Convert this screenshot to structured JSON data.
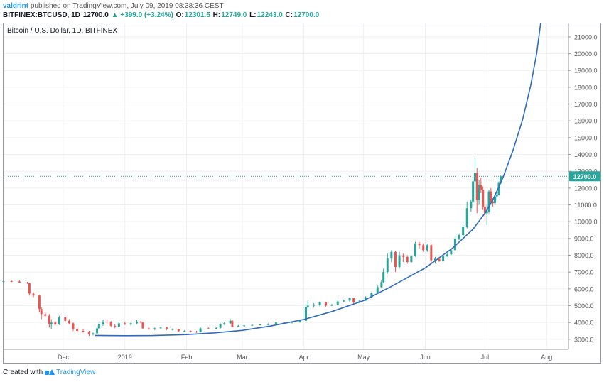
{
  "header": {
    "author": "valdrint",
    "published_text": "published on TradingView.com, July 09, 2019 08:38:36 CEST"
  },
  "ohlc": {
    "symbol": "BITFINEX:BTCUSD, 1D",
    "last": "12700.0",
    "change": "▲ +399.0 (+3.24%)",
    "o_label": "O:",
    "o_value": "12301.5",
    "h_label": "H:",
    "h_value": "12749.0",
    "l_label": "L:",
    "l_value": "12243.0",
    "c_label": "C:",
    "c_value": "12700.0"
  },
  "pane_title": "Bitcoin / U.S. Dollar, 1D, BITFINEX",
  "footer": {
    "created_with": "Created with",
    "brand": "TradingView"
  },
  "colors": {
    "up": "#26a69a",
    "down": "#ef5350",
    "curve": "#2e6bbf",
    "last_price": "#26a69a",
    "grid": "#eef0f3",
    "axis_text": "#555555"
  },
  "chart_data": {
    "type": "candlestick",
    "title": "Bitcoin / U.S. Dollar, 1D, BITFINEX",
    "yrange": [
      2400,
      21800
    ],
    "y_ticks": [
      "3000.0",
      "4000.0",
      "5000.0",
      "6000.0",
      "7000.0",
      "8000.0",
      "9000.0",
      "10000.0",
      "11000.0",
      "12000.0",
      "13000.0",
      "14000.0",
      "15000.0",
      "16000.0",
      "17000.0",
      "18000.0",
      "19000.0",
      "20000.0",
      "21000.0"
    ],
    "x_range": [
      "2018-11-01",
      "2019-08-12"
    ],
    "x_ticks": [
      {
        "label": "Dec",
        "date": "2018-12-01"
      },
      {
        "label": "2019",
        "date": "2019-01-01"
      },
      {
        "label": "Feb",
        "date": "2019-02-01"
      },
      {
        "label": "Mar",
        "date": "2019-03-01"
      },
      {
        "label": "Apr",
        "date": "2019-04-01"
      },
      {
        "label": "May",
        "date": "2019-05-01"
      },
      {
        "label": "Jun",
        "date": "2019-06-01"
      },
      {
        "label": "Jul",
        "date": "2019-07-01"
      },
      {
        "label": "Aug",
        "date": "2019-08-01"
      }
    ],
    "last_price": 12700.0,
    "last_price_label": "12700.0",
    "ohlc_series": [
      [
        "2018-11-01",
        6420,
        6480,
        6390,
        6460
      ],
      [
        "2018-11-05",
        6460,
        6520,
        6400,
        6440
      ],
      [
        "2018-11-09",
        6440,
        6500,
        6360,
        6380
      ],
      [
        "2018-11-13",
        6380,
        6420,
        6300,
        6340
      ],
      [
        "2018-11-14",
        6340,
        6360,
        5600,
        5720
      ],
      [
        "2018-11-16",
        5720,
        5800,
        5500,
        5600
      ],
      [
        "2018-11-19",
        5600,
        5650,
        4600,
        4800
      ],
      [
        "2018-11-20",
        4800,
        4900,
        4200,
        4500
      ],
      [
        "2018-11-22",
        4500,
        4600,
        4300,
        4400
      ],
      [
        "2018-11-24",
        4400,
        4500,
        3700,
        3900
      ],
      [
        "2018-11-25",
        3900,
        4200,
        3600,
        4000
      ],
      [
        "2018-11-27",
        4000,
        4100,
        3800,
        3900
      ],
      [
        "2018-11-29",
        3900,
        4400,
        3850,
        4300
      ],
      [
        "2018-12-02",
        4300,
        4350,
        4000,
        4100
      ],
      [
        "2018-12-04",
        4100,
        4200,
        3900,
        3950
      ],
      [
        "2018-12-06",
        3950,
        4000,
        3500,
        3600
      ],
      [
        "2018-12-08",
        3600,
        3700,
        3400,
        3500
      ],
      [
        "2018-12-11",
        3500,
        3600,
        3400,
        3450
      ],
      [
        "2018-12-14",
        3450,
        3500,
        3200,
        3300
      ],
      [
        "2018-12-16",
        3300,
        3400,
        3230,
        3350
      ],
      [
        "2018-12-18",
        3350,
        3700,
        3300,
        3650
      ],
      [
        "2018-12-19",
        3650,
        4000,
        3600,
        3900
      ],
      [
        "2018-12-21",
        3900,
        4150,
        3800,
        4050
      ],
      [
        "2018-12-23",
        4050,
        4200,
        3900,
        4000
      ],
      [
        "2018-12-25",
        4000,
        4100,
        3700,
        3800
      ],
      [
        "2018-12-27",
        3800,
        3900,
        3650,
        3750
      ],
      [
        "2018-12-29",
        3750,
        4000,
        3700,
        3950
      ],
      [
        "2019-01-01",
        3950,
        4050,
        3850,
        3900
      ],
      [
        "2019-01-04",
        3900,
        4000,
        3800,
        3950
      ],
      [
        "2019-01-07",
        3950,
        4150,
        3900,
        4050
      ],
      [
        "2019-01-09",
        4050,
        4100,
        3950,
        4000
      ],
      [
        "2019-01-10",
        4000,
        4020,
        3600,
        3650
      ],
      [
        "2019-01-13",
        3650,
        3700,
        3550,
        3600
      ],
      [
        "2019-01-16",
        3600,
        3700,
        3550,
        3650
      ],
      [
        "2019-01-19",
        3650,
        3750,
        3600,
        3700
      ],
      [
        "2019-01-22",
        3700,
        3720,
        3550,
        3580
      ],
      [
        "2019-01-25",
        3580,
        3650,
        3520,
        3600
      ],
      [
        "2019-01-28",
        3600,
        3620,
        3450,
        3480
      ],
      [
        "2019-01-31",
        3480,
        3550,
        3430,
        3500
      ],
      [
        "2019-02-03",
        3500,
        3520,
        3400,
        3450
      ],
      [
        "2019-02-06",
        3450,
        3500,
        3380,
        3420
      ],
      [
        "2019-02-08",
        3420,
        3700,
        3400,
        3650
      ],
      [
        "2019-02-12",
        3650,
        3700,
        3600,
        3620
      ],
      [
        "2019-02-16",
        3620,
        3700,
        3580,
        3680
      ],
      [
        "2019-02-18",
        3680,
        3950,
        3650,
        3900
      ],
      [
        "2019-02-20",
        3900,
        4050,
        3850,
        3950
      ],
      [
        "2019-02-23",
        3950,
        4200,
        3900,
        4100
      ],
      [
        "2019-02-24",
        4100,
        4150,
        3700,
        3750
      ],
      [
        "2019-02-27",
        3750,
        3850,
        3720,
        3800
      ],
      [
        "2019-03-02",
        3800,
        3850,
        3750,
        3820
      ],
      [
        "2019-03-06",
        3820,
        3900,
        3780,
        3850
      ],
      [
        "2019-03-10",
        3850,
        3920,
        3820,
        3880
      ],
      [
        "2019-03-14",
        3880,
        3950,
        3830,
        3900
      ],
      [
        "2019-03-18",
        3900,
        4020,
        3880,
        4000
      ],
      [
        "2019-03-22",
        4000,
        4050,
        3950,
        3980
      ],
      [
        "2019-03-26",
        3980,
        4050,
        3940,
        4020
      ],
      [
        "2019-03-30",
        4020,
        4120,
        3990,
        4100
      ],
      [
        "2019-04-02",
        4100,
        5000,
        4080,
        4900
      ],
      [
        "2019-04-03",
        4900,
        5300,
        4800,
        5000
      ],
      [
        "2019-04-06",
        5000,
        5150,
        4900,
        5050
      ],
      [
        "2019-04-09",
        5050,
        5250,
        4950,
        5200
      ],
      [
        "2019-04-12",
        5200,
        5230,
        4950,
        5000
      ],
      [
        "2019-04-15",
        5000,
        5100,
        4980,
        5050
      ],
      [
        "2019-04-18",
        5050,
        5300,
        5000,
        5250
      ],
      [
        "2019-04-21",
        5250,
        5350,
        5200,
        5300
      ],
      [
        "2019-04-24",
        5300,
        5500,
        5200,
        5450
      ],
      [
        "2019-04-26",
        5450,
        5480,
        5100,
        5200
      ],
      [
        "2019-04-29",
        5200,
        5350,
        5150,
        5300
      ],
      [
        "2019-05-02",
        5300,
        5550,
        5280,
        5500
      ],
      [
        "2019-05-05",
        5500,
        5800,
        5450,
        5750
      ],
      [
        "2019-05-08",
        5750,
        6200,
        5700,
        6100
      ],
      [
        "2019-05-10",
        6100,
        6500,
        6050,
        6400
      ],
      [
        "2019-05-11",
        6400,
        7200,
        6350,
        7000
      ],
      [
        "2019-05-13",
        7000,
        8100,
        6900,
        7800
      ],
      [
        "2019-05-15",
        7800,
        8300,
        7600,
        8200
      ],
      [
        "2019-05-17",
        8200,
        8250,
        7000,
        7300
      ],
      [
        "2019-05-19",
        7300,
        8200,
        7200,
        8000
      ],
      [
        "2019-05-21",
        8000,
        8100,
        7600,
        7900
      ],
      [
        "2019-05-23",
        7900,
        8000,
        7500,
        7600
      ],
      [
        "2019-05-25",
        7600,
        8000,
        7550,
        7950
      ],
      [
        "2019-05-27",
        7950,
        8800,
        7900,
        8700
      ],
      [
        "2019-05-29",
        8700,
        8800,
        8400,
        8600
      ],
      [
        "2019-05-31",
        8600,
        8700,
        8200,
        8300
      ],
      [
        "2019-06-02",
        8300,
        8700,
        8200,
        8600
      ],
      [
        "2019-06-04",
        8600,
        8700,
        7500,
        7700
      ],
      [
        "2019-06-06",
        7700,
        7900,
        7500,
        7800
      ],
      [
        "2019-06-08",
        7800,
        7900,
        7600,
        7650
      ],
      [
        "2019-06-10",
        7650,
        8000,
        7600,
        7950
      ],
      [
        "2019-06-12",
        7950,
        8100,
        7900,
        8050
      ],
      [
        "2019-06-14",
        8050,
        8400,
        8000,
        8300
      ],
      [
        "2019-06-16",
        8300,
        9200,
        8250,
        9000
      ],
      [
        "2019-06-18",
        9000,
        9300,
        8900,
        9200
      ],
      [
        "2019-06-20",
        9200,
        9800,
        9100,
        9700
      ],
      [
        "2019-06-22",
        9700,
        11200,
        9600,
        10800
      ],
      [
        "2019-06-24",
        10800,
        11300,
        10600,
        11200
      ],
      [
        "2019-06-25",
        11200,
        12500,
        11100,
        12400
      ],
      [
        "2019-06-26",
        12400,
        13800,
        11500,
        12900
      ],
      [
        "2019-06-27",
        12900,
        13200,
        10500,
        11300
      ],
      [
        "2019-06-28",
        11300,
        12500,
        11000,
        12200
      ],
      [
        "2019-06-29",
        12200,
        12600,
        11700,
        11900
      ],
      [
        "2019-06-30",
        11900,
        12100,
        10700,
        10900
      ],
      [
        "2019-07-01",
        10900,
        11200,
        10000,
        10500
      ],
      [
        "2019-07-02",
        10500,
        11000,
        9800,
        10600
      ],
      [
        "2019-07-03",
        10600,
        11900,
        10500,
        11800
      ],
      [
        "2019-07-04",
        11800,
        12000,
        11000,
        11200
      ],
      [
        "2019-07-05",
        11200,
        11400,
        10900,
        11100
      ],
      [
        "2019-07-06",
        11100,
        11600,
        11000,
        11500
      ],
      [
        "2019-07-07",
        11500,
        11700,
        11300,
        11600
      ],
      [
        "2019-07-08",
        11600,
        12400,
        11550,
        12300
      ],
      [
        "2019-07-09",
        12301.5,
        12749,
        12243,
        12700
      ]
    ],
    "curve_points": [
      [
        "2018-12-17",
        3230
      ],
      [
        "2019-01-01",
        3210
      ],
      [
        "2019-01-15",
        3220
      ],
      [
        "2019-02-01",
        3280
      ],
      [
        "2019-02-15",
        3380
      ],
      [
        "2019-03-01",
        3530
      ],
      [
        "2019-03-15",
        3780
      ],
      [
        "2019-04-01",
        4180
      ],
      [
        "2019-04-15",
        4650
      ],
      [
        "2019-05-01",
        5300
      ],
      [
        "2019-05-15",
        6150
      ],
      [
        "2019-06-01",
        7250
      ],
      [
        "2019-06-15",
        8450
      ],
      [
        "2019-06-25",
        9550
      ],
      [
        "2019-07-01",
        10500
      ],
      [
        "2019-07-05",
        11300
      ],
      [
        "2019-07-10",
        12600
      ],
      [
        "2019-07-15",
        14200
      ],
      [
        "2019-07-20",
        16100
      ],
      [
        "2019-07-24",
        18100
      ],
      [
        "2019-07-27",
        20000
      ],
      [
        "2019-07-29",
        21800
      ]
    ]
  }
}
